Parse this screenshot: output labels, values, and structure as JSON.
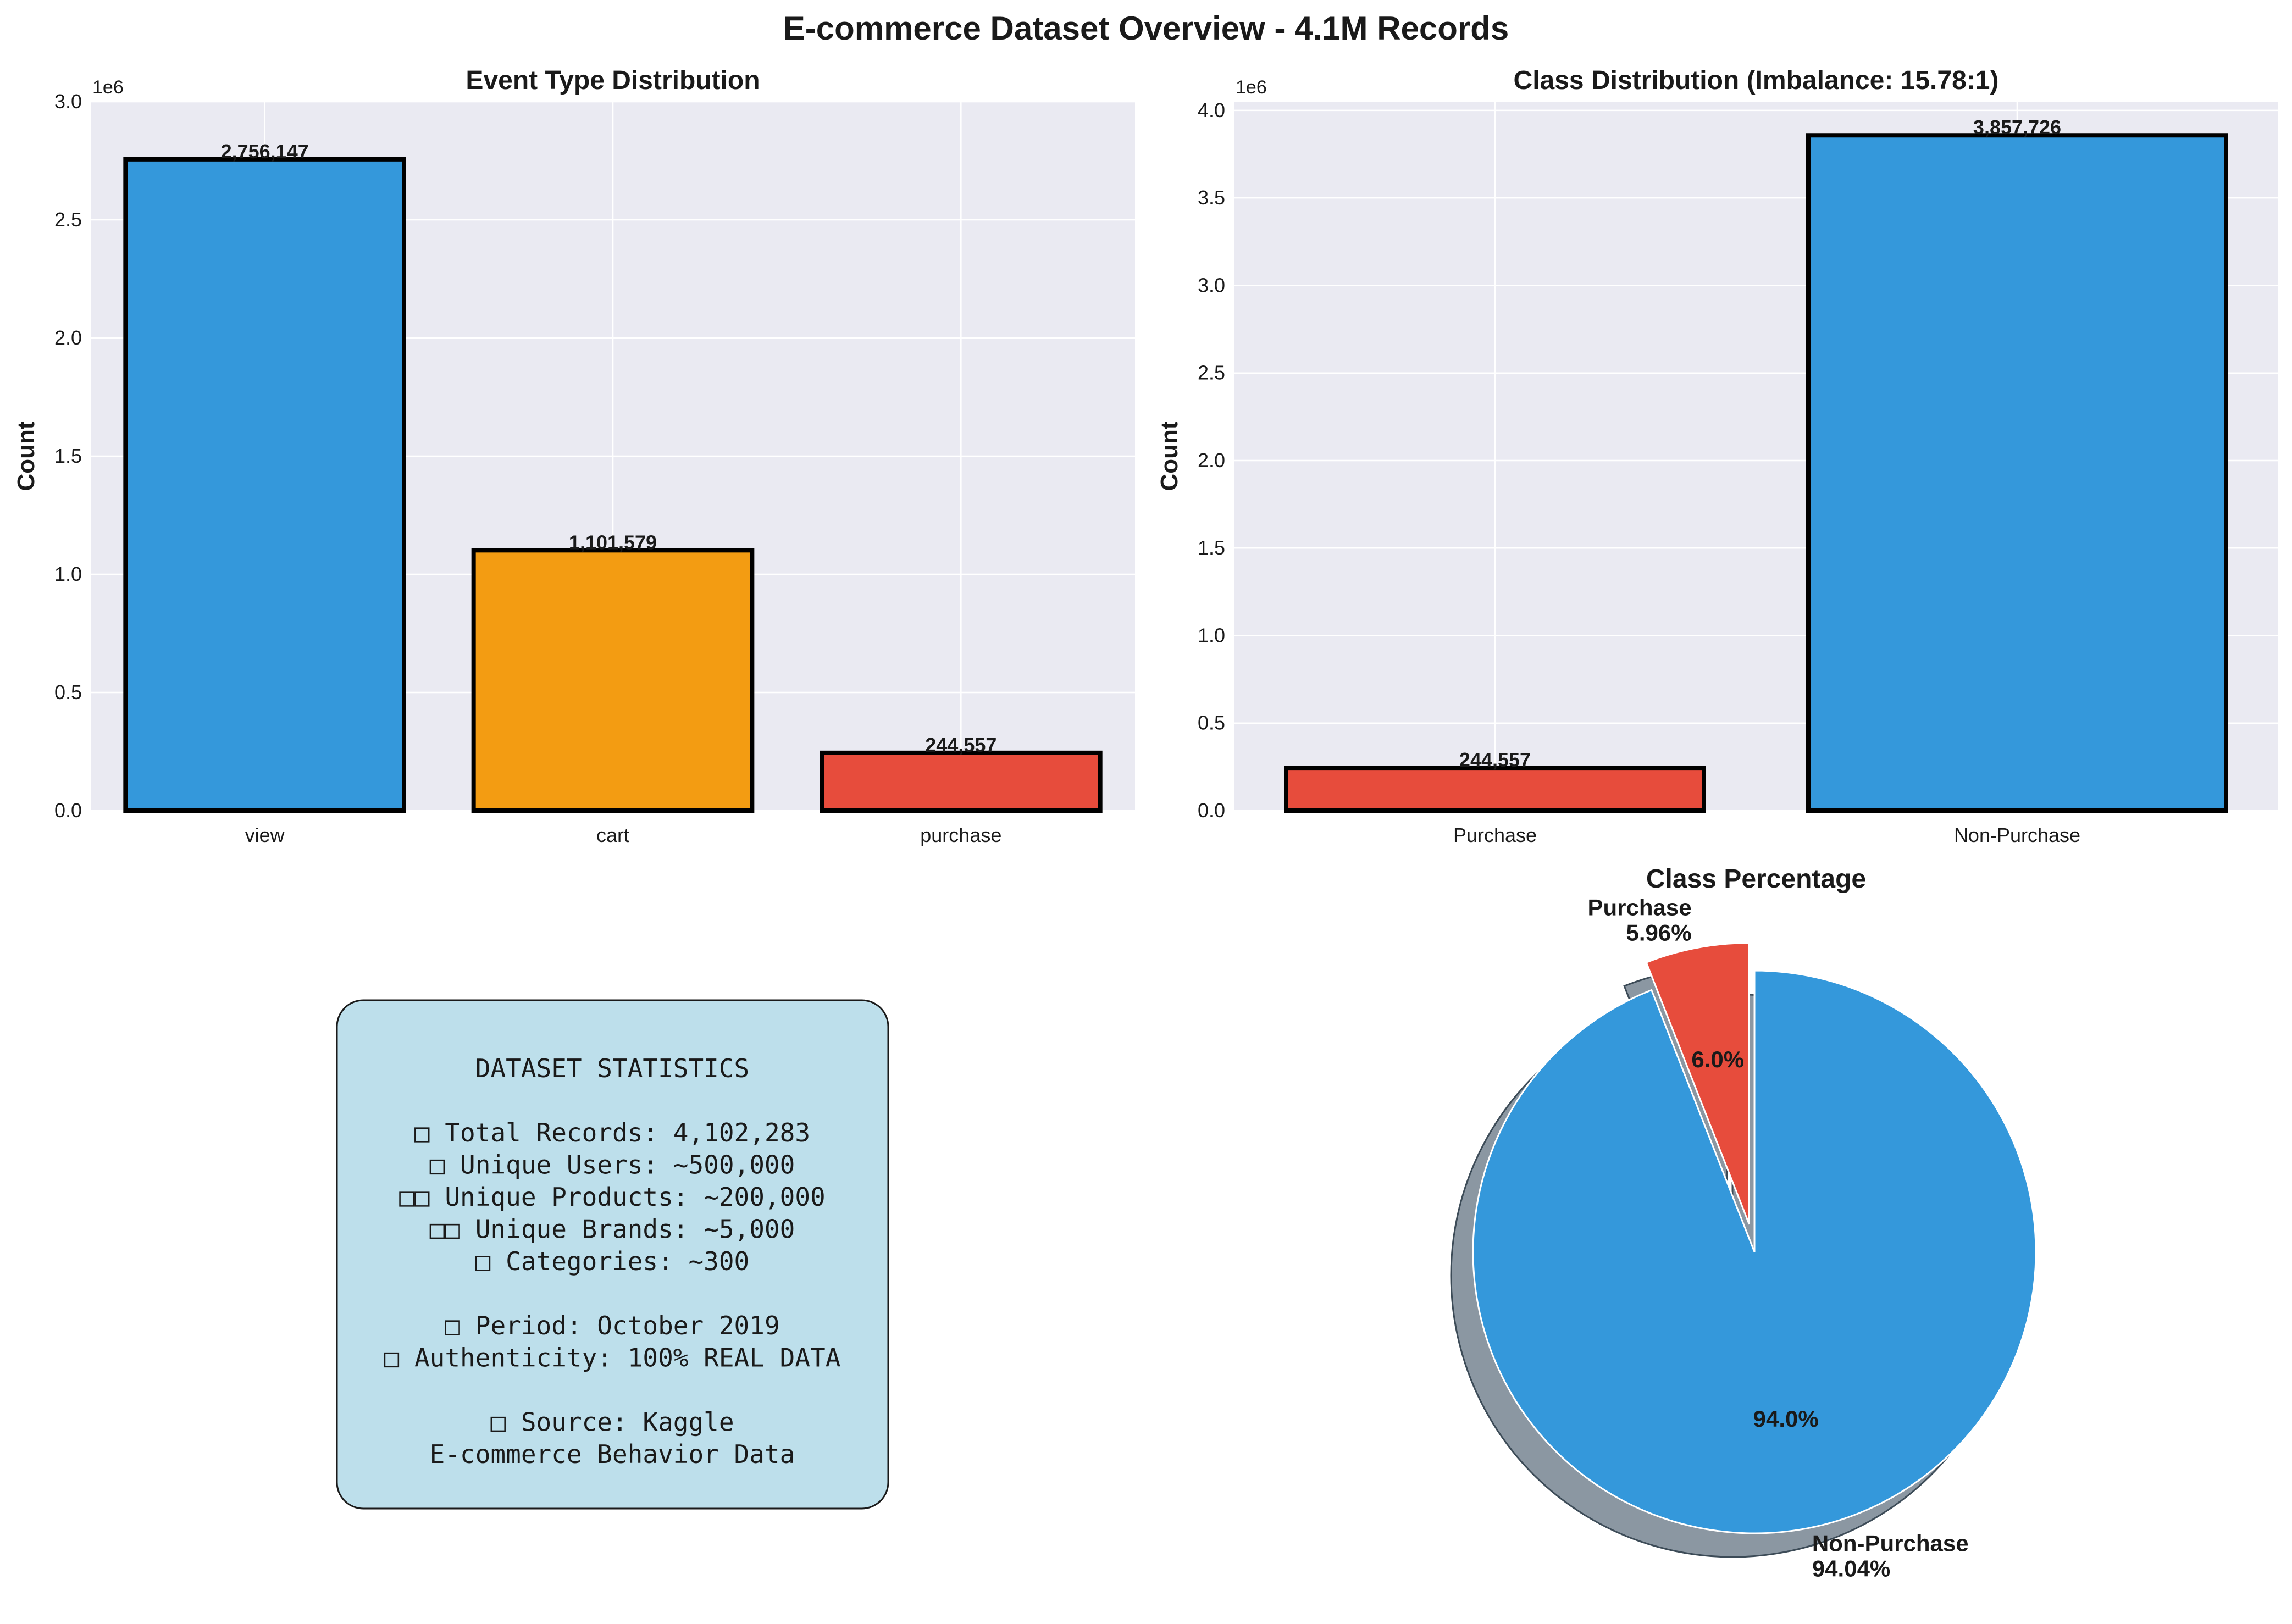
{
  "figure": {
    "suptitle": "E-commerce Dataset Overview - 4.1M Records"
  },
  "chart_data": [
    {
      "type": "bar",
      "title": "Event Type Distribution",
      "xlabel": "",
      "ylabel": "Count",
      "offset_label": "1e6",
      "categories": [
        "view",
        "cart",
        "purchase"
      ],
      "values": [
        2756147,
        1101579,
        244557
      ],
      "value_labels": [
        "2,756,147",
        "1,101,579",
        "244,557"
      ],
      "colors": [
        "#3498db",
        "#f39c12",
        "#e74c3c"
      ],
      "ylim": [
        0,
        3000000
      ],
      "yticks": [
        0,
        500000,
        1000000,
        1500000,
        2000000,
        2500000,
        3000000
      ],
      "ytick_labels": [
        "0.0",
        "0.5",
        "1.0",
        "1.5",
        "2.0",
        "2.5",
        "3.0"
      ],
      "grid": true
    },
    {
      "type": "bar",
      "title": "Class Distribution (Imbalance: 15.78:1)",
      "xlabel": "",
      "ylabel": "Count",
      "offset_label": "1e6",
      "categories": [
        "Purchase",
        "Non-Purchase"
      ],
      "values": [
        244557,
        3857726
      ],
      "value_labels": [
        "244,557",
        "3,857,726"
      ],
      "colors": [
        "#e74c3c",
        "#3498db"
      ],
      "ylim": [
        0,
        4050000
      ],
      "yticks": [
        0,
        500000,
        1000000,
        1500000,
        2000000,
        2500000,
        3000000,
        3500000,
        4000000
      ],
      "ytick_labels": [
        "0.0",
        "0.5",
        "1.0",
        "1.5",
        "2.0",
        "2.5",
        "3.0",
        "3.5",
        "4.0"
      ],
      "grid": true
    },
    {
      "type": "pie",
      "title": "Class Percentage",
      "slices": [
        {
          "label": "Purchase",
          "outer_label": "Purchase\n5.96%",
          "pct_label": "6.0%",
          "value": 5.96,
          "color": "#e74c3c",
          "exploded": true
        },
        {
          "label": "Non-Purchase",
          "outer_label": "Non-Purchase\n94.04%",
          "pct_label": "94.0%",
          "value": 94.04,
          "color": "#3498db",
          "exploded": false
        }
      ],
      "shadow": true
    }
  ],
  "stats_box": {
    "lines": [
      "DATASET STATISTICS",
      "",
      "□ Total Records: 4,102,283",
      "□ Unique Users: ~500,000",
      "□□  Unique Products: ~200,000",
      "□□  Unique Brands: ~5,000",
      "□ Categories: ~300",
      "",
      "□ Period: October 2019",
      "□ Authenticity: 100% REAL DATA",
      "",
      "□ Source: Kaggle",
      "   E-commerce Behavior Data"
    ],
    "background": "#bddfeb"
  }
}
